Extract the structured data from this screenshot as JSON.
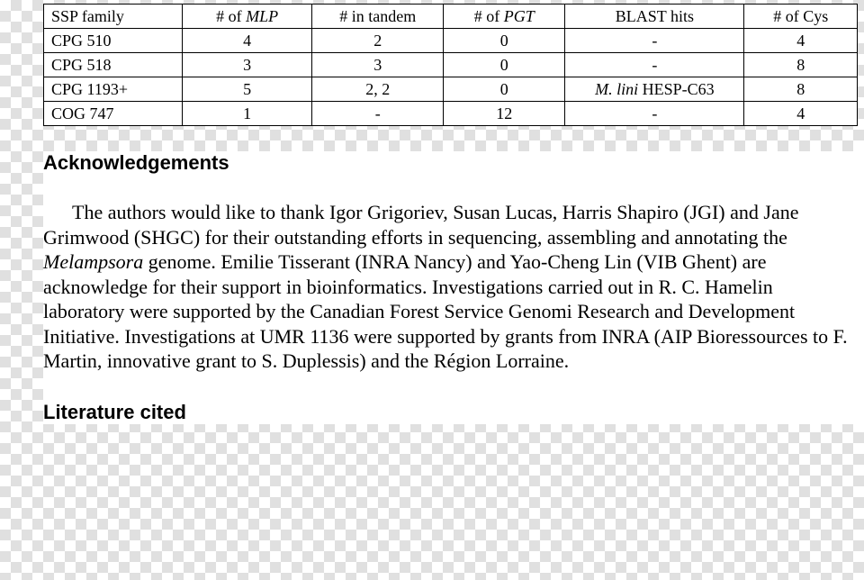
{
  "table": {
    "headers": {
      "ssp": "SSP family",
      "mlp_pre": "# of ",
      "mlp_it": "MLP",
      "tandem": "# in tandem",
      "pgt_pre": "# of ",
      "pgt_it": "PGT",
      "blast": "BLAST hits",
      "cys": "# of Cys"
    },
    "rows": [
      {
        "ssp": "CPG 510",
        "mlp": "4",
        "tandem": "2",
        "pgt": "0",
        "blast_text": "-",
        "blast_italic": "",
        "cys": "4"
      },
      {
        "ssp": "CPG 518",
        "mlp": "3",
        "tandem": "3",
        "pgt": "0",
        "blast_text": "-",
        "blast_italic": "",
        "cys": "8"
      },
      {
        "ssp": "CPG 1193+",
        "mlp": "5",
        "tandem": "2, 2",
        "pgt": "0",
        "blast_text": " HESP-C63",
        "blast_italic": "M. lini",
        "cys": "8"
      },
      {
        "ssp": "COG 747",
        "mlp": "1",
        "tandem": "-",
        "pgt": "12",
        "blast_text": "-",
        "blast_italic": "",
        "cys": "4"
      }
    ]
  },
  "headings": {
    "ack": "Acknowledgements",
    "lit": "Literature cited"
  },
  "paragraph": {
    "pre": "The authors would like to thank Igor Grigoriev, Susan Lucas, Harris Shapiro (JGI) and Jane Grimwood (SHGC) for their outstanding efforts in sequencing, assembling and annotating the ",
    "it": "Melampsora",
    "post": " genome. Emilie Tisserant (INRA Nancy) and Yao-Cheng Lin (VIB Ghent) are acknowledge for their support in bioinformatics. Investigations carried out in R. C. Hamelin laboratory were supported by the Canadian Forest Service Genomi Research and Development Initiative. Investigations at UMR 1136 were supported by grants from INRA (AIP Bioressources to F. Martin, innovative grant to S. Duplessis) and the Région Lorraine."
  }
}
